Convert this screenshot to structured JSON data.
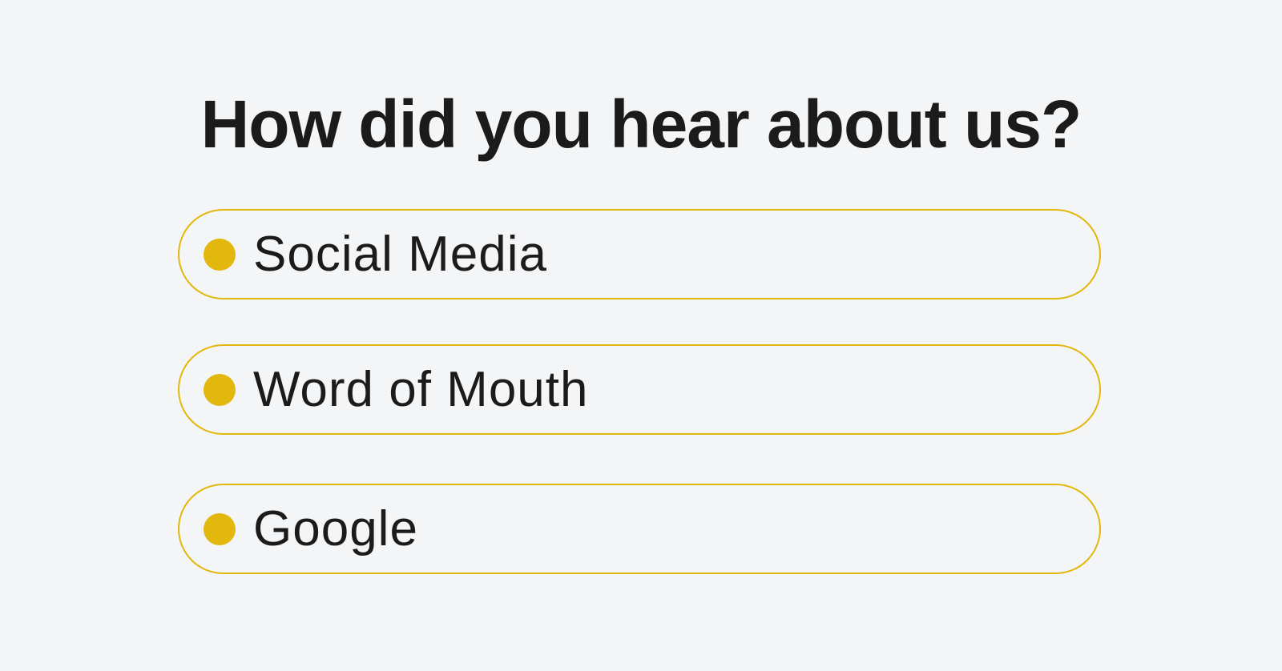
{
  "question": {
    "title": "How did you hear about us?",
    "options": [
      "Social Media",
      "Word of Mouth",
      "Google"
    ]
  }
}
